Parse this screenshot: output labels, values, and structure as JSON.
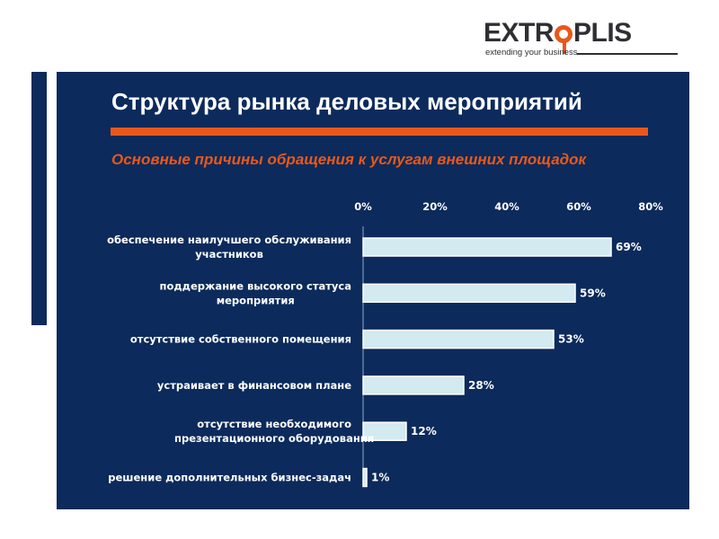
{
  "logo": {
    "wordmark_left": "EXTR",
    "wordmark_right": "PLIS",
    "tagline": "extending your business"
  },
  "title": "Структура рынка деловых мероприятий",
  "subtitle": "Основные причины обращения к услугам внешних площадок",
  "colors": {
    "panel": "#0c2a5b",
    "accent": "#e8581b",
    "bar_fill": "#d2eaf0",
    "text": "#ffffff"
  },
  "chart_data": {
    "type": "bar",
    "orientation": "horizontal",
    "categories": [
      [
        "обеспечение наилучшего обслуживания",
        "участников"
      ],
      [
        "поддержание высокого статуса",
        "мероприятия"
      ],
      [
        "отсутствие собственного помещения"
      ],
      [
        "устраивает в финансовом плане"
      ],
      [
        "отсутствие необходимого",
        "презентационного оборудования"
      ],
      [
        "решение дополнительных бизнес-задач"
      ]
    ],
    "values": [
      69,
      59,
      53,
      28,
      12,
      1
    ],
    "data_labels": [
      "69%",
      "59%",
      "53%",
      "28%",
      "12%",
      "1%"
    ],
    "xlim": [
      0,
      80
    ],
    "xticks": [
      0,
      20,
      40,
      60,
      80
    ],
    "xtick_labels": [
      "0%",
      "20%",
      "40%",
      "60%",
      "80%"
    ],
    "axis_position": "top",
    "grid": false,
    "legend": "none"
  }
}
